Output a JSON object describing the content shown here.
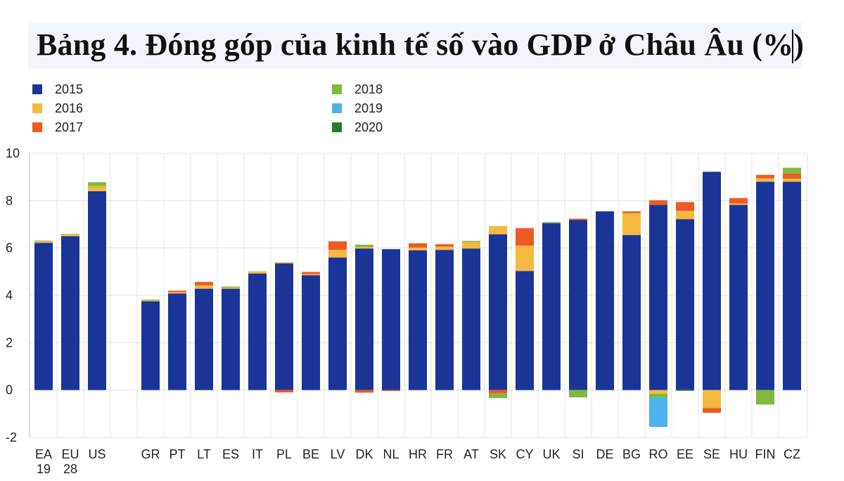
{
  "title": "Bảng 4. Đóng góp của kinh tế số vào GDP ở Châu Âu (%)",
  "chart_data": {
    "type": "bar",
    "stacked": true,
    "title": "Bảng 4. Đóng góp của kinh tế số vào GDP ở Châu Âu (%)",
    "xlabel": "",
    "ylabel": "",
    "ylim": [
      -2,
      10
    ],
    "yticks": [
      10,
      8,
      6,
      4,
      2,
      0,
      -2
    ],
    "grid": true,
    "legend_position": "top-left",
    "categories": [
      {
        "code": "EA",
        "line2": "19"
      },
      {
        "code": "EU",
        "line2": "28"
      },
      {
        "code": "US",
        "line2": ""
      },
      {
        "code": "GR",
        "line2": ""
      },
      {
        "code": "PT",
        "line2": ""
      },
      {
        "code": "LT",
        "line2": ""
      },
      {
        "code": "ES",
        "line2": ""
      },
      {
        "code": "IT",
        "line2": ""
      },
      {
        "code": "PL",
        "line2": ""
      },
      {
        "code": "BE",
        "line2": ""
      },
      {
        "code": "LV",
        "line2": ""
      },
      {
        "code": "DK",
        "line2": ""
      },
      {
        "code": "NL",
        "line2": ""
      },
      {
        "code": "HR",
        "line2": ""
      },
      {
        "code": "FR",
        "line2": ""
      },
      {
        "code": "AT",
        "line2": ""
      },
      {
        "code": "SK",
        "line2": ""
      },
      {
        "code": "CY",
        "line2": ""
      },
      {
        "code": "UK",
        "line2": ""
      },
      {
        "code": "SI",
        "line2": ""
      },
      {
        "code": "DE",
        "line2": ""
      },
      {
        "code": "BG",
        "line2": ""
      },
      {
        "code": "RO",
        "line2": ""
      },
      {
        "code": "EE",
        "line2": ""
      },
      {
        "code": "SE",
        "line2": ""
      },
      {
        "code": "HU",
        "line2": ""
      },
      {
        "code": "FIN",
        "line2": ""
      },
      {
        "code": "CZ",
        "line2": ""
      }
    ],
    "series": [
      {
        "name": "2015",
        "color": "#1a3597",
        "values": [
          6.22,
          6.5,
          8.4,
          3.75,
          4.08,
          4.28,
          4.28,
          4.92,
          5.35,
          4.85,
          5.6,
          5.98,
          5.95,
          5.9,
          5.92,
          5.98,
          6.58,
          5.03,
          7.05,
          7.18,
          7.55,
          6.55,
          7.82,
          7.22,
          9.22,
          7.82,
          8.8,
          8.8
        ]
      },
      {
        "name": "2016",
        "color": "#f5b841",
        "values": [
          0.06,
          0.06,
          0.22,
          0.04,
          0.06,
          0.14,
          0.04,
          0.1,
          0.05,
          0.05,
          0.32,
          0.07,
          0.0,
          0.12,
          0.14,
          0.27,
          0.35,
          1.07,
          0.0,
          0.0,
          0.0,
          0.92,
          -0.15,
          0.35,
          -0.76,
          0.06,
          0.14,
          0.13
        ]
      },
      {
        "name": "2017",
        "color": "#ed5a24",
        "values": [
          0.0,
          0.0,
          0.0,
          0.0,
          0.06,
          0.15,
          0.0,
          0.0,
          -0.1,
          0.09,
          0.36,
          -0.11,
          -0.04,
          0.18,
          0.1,
          0.0,
          -0.14,
          0.74,
          0.0,
          0.06,
          0.0,
          0.08,
          0.2,
          0.37,
          -0.2,
          0.23,
          0.15,
          0.21
        ]
      },
      {
        "name": "2018",
        "color": "#80b93e",
        "values": [
          0.03,
          0.03,
          0.16,
          0.03,
          0.0,
          0.0,
          0.05,
          0.0,
          0.0,
          0.0,
          0.0,
          0.09,
          0.0,
          0.0,
          0.0,
          0.05,
          -0.2,
          0.0,
          0.04,
          -0.31,
          0.0,
          0.0,
          -0.16,
          0.0,
          0.0,
          0.0,
          -0.61,
          0.25
        ]
      },
      {
        "name": "2019",
        "color": "#4db3ec",
        "values": [
          0,
          0,
          0,
          0,
          0,
          0,
          0,
          0,
          0,
          0,
          0,
          0,
          0,
          0,
          0,
          0,
          0,
          0,
          0,
          0,
          0,
          0,
          -1.25,
          0,
          0,
          0,
          0,
          0
        ]
      },
      {
        "name": "2020",
        "color": "#2b7a2b",
        "values": [
          0,
          0,
          0,
          0,
          0,
          0,
          0,
          0,
          0,
          0,
          0,
          0,
          0,
          0,
          0,
          0,
          0,
          0,
          0,
          0,
          0,
          0,
          0,
          -0.03,
          0,
          0,
          0,
          0
        ]
      }
    ]
  }
}
